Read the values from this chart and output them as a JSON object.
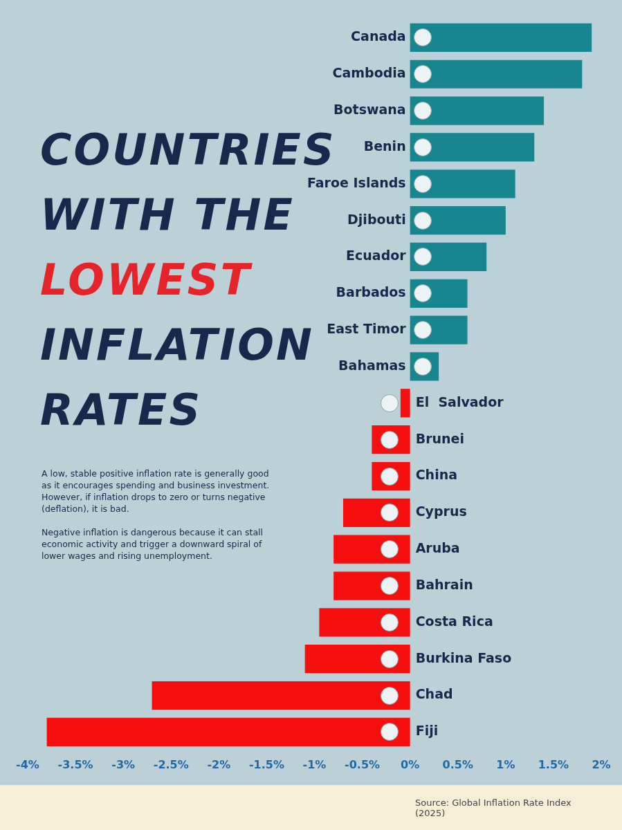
{
  "chart_data": {
    "type": "bar",
    "orientation": "horizontal",
    "title": "COUNTRIES WITH THE LOWEST INFLATION RATES",
    "categories": [
      "Canada",
      "Cambodia",
      "Botswana",
      "Benin",
      "Faroe Islands",
      "Djibouti",
      "Ecuador",
      "Barbados",
      "East Timor",
      "Bahamas",
      "El  Salvador",
      "Brunei",
      "China",
      "Cyprus",
      "Aruba",
      "Bahrain",
      "Costa Rica",
      "Burkina Faso",
      "Chad",
      "Fiji"
    ],
    "values": [
      1.9,
      1.8,
      1.4,
      1.3,
      1.1,
      1.0,
      0.8,
      0.6,
      0.6,
      0.3,
      -0.1,
      -0.4,
      -0.4,
      -0.7,
      -0.8,
      -0.8,
      -0.95,
      -1.1,
      -2.7,
      -3.8
    ],
    "colors": [
      "#17868f",
      "#17868f",
      "#17868f",
      "#17868f",
      "#17868f",
      "#17868f",
      "#17868f",
      "#17868f",
      "#17868f",
      "#17868f",
      "#f50f0f",
      "#f50f0f",
      "#f50f0f",
      "#f50f0f",
      "#f50f0f",
      "#f50f0f",
      "#f50f0f",
      "#f50f0f",
      "#f50f0f",
      "#f50f0f"
    ],
    "xlim": [
      -4,
      2
    ],
    "xticks": [
      {
        "value": -4,
        "label": "-4%"
      },
      {
        "value": -3.5,
        "label": "-3.5%"
      },
      {
        "value": -3,
        "label": "-3%"
      },
      {
        "value": -2.5,
        "label": "-2.5%"
      },
      {
        "value": -2,
        "label": "-2%"
      },
      {
        "value": -1.5,
        "label": "-1.5%"
      },
      {
        "value": -1,
        "label": "-1%"
      },
      {
        "value": -0.5,
        "label": "-0.5%"
      },
      {
        "value": 0,
        "label": "0%"
      },
      {
        "value": 0.5,
        "label": "0.5%"
      },
      {
        "value": 1,
        "label": "1%"
      },
      {
        "value": 1.5,
        "label": "1.5%"
      },
      {
        "value": 2,
        "label": "2%"
      }
    ],
    "grid": false,
    "legend": false,
    "annotations": [
      "A low, stable positive inflation rate is generally good as it encourages spending and business investment.\nHowever, if inflation drops to zero or turns negative (deflation), it is bad.",
      "Negative inflation is dangerous because it can stall economic activity and trigger a downward spiral of lower wages and rising unemployment.",
      "Source: Global Inflation Rate Index (2025)"
    ]
  }
}
